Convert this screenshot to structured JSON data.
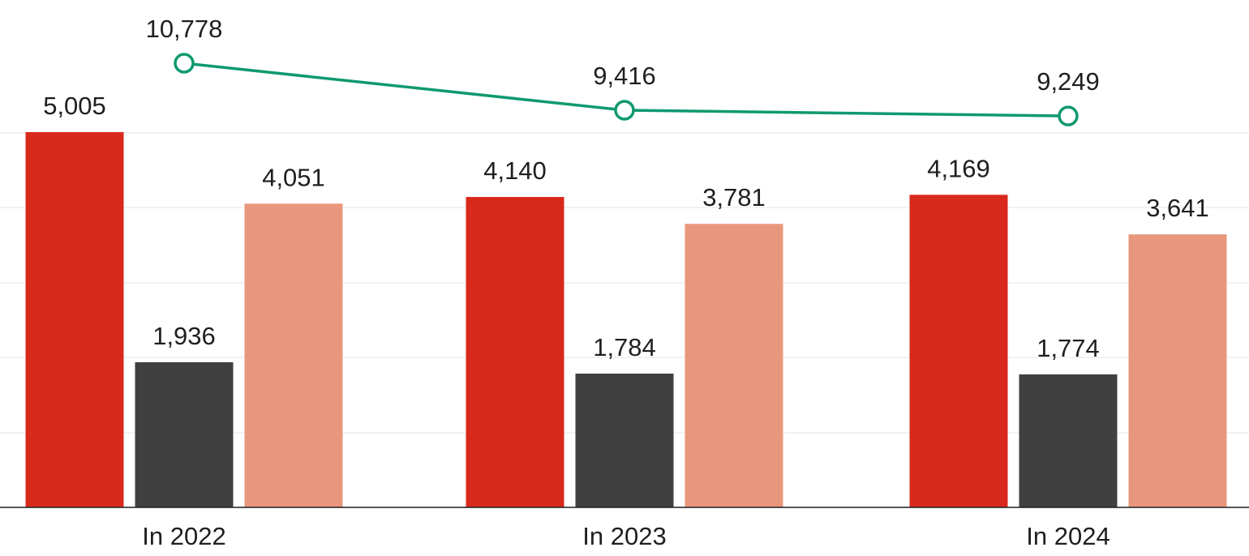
{
  "chart_data": {
    "type": "bar",
    "categories": [
      "In 2022",
      "In 2023",
      "In 2024"
    ],
    "series": [
      {
        "values": [
          5005,
          4140,
          4169
        ],
        "labels": [
          "5,005",
          "4,140",
          "4,169"
        ],
        "color": "#d9291c"
      },
      {
        "values": [
          1936,
          1784,
          1774
        ],
        "labels": [
          "1,936",
          "1,784",
          "1,774"
        ],
        "color": "#404040"
      },
      {
        "values": [
          4051,
          3781,
          3641
        ],
        "labels": [
          "4,051",
          "3,781",
          "3,641"
        ],
        "color": "#e9977c"
      }
    ],
    "line_series": {
      "type": "line",
      "values": [
        10778,
        9416,
        9249
      ],
      "labels": [
        "10,778",
        "9,416",
        "9,249"
      ],
      "color": "#0f9970"
    },
    "title": "",
    "xlabel": "",
    "ylabel": "",
    "ylim": [
      0,
      5005
    ],
    "grid": true,
    "legend": "none",
    "axis_color": "#1f1f1f",
    "grid_color": "#e6e6e6"
  }
}
